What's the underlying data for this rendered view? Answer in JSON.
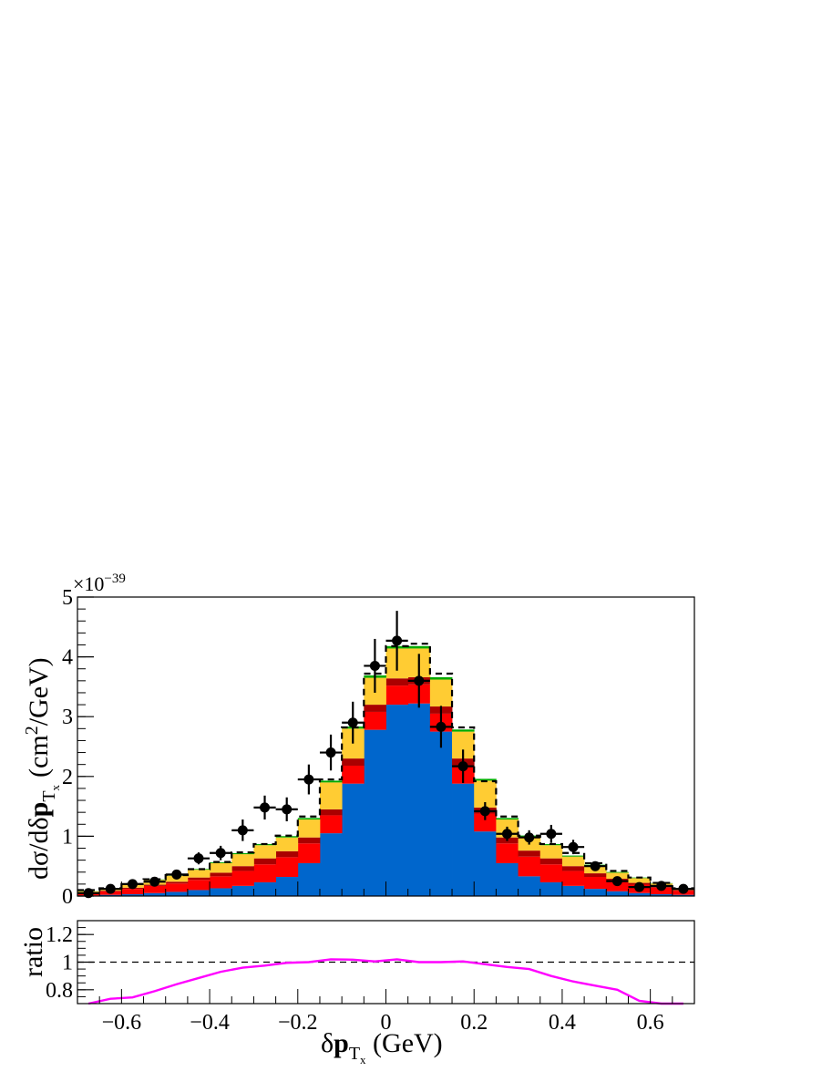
{
  "chart_data": [
    {
      "type": "bar",
      "panel": "main",
      "stacked": true,
      "bin_edges": [
        -0.7,
        -0.65,
        -0.6,
        -0.55,
        -0.5,
        -0.45,
        -0.4,
        -0.35,
        -0.3,
        -0.25,
        -0.2,
        -0.15,
        -0.1,
        -0.05,
        0,
        0.05,
        0.1,
        0.15,
        0.2,
        0.25,
        0.3,
        0.35,
        0.4,
        0.45,
        0.5,
        0.55,
        0.6,
        0.65,
        0.7
      ],
      "xlim": [
        -0.7,
        0.7
      ],
      "ylim": [
        0,
        5
      ],
      "y_multiplier": "×10",
      "y_multiplier_exp": "−39",
      "ylabel": {
        "main": "dσ/dδ",
        "bold": "p",
        "sub": "T",
        "subsub": "x",
        "units_pre": "(cm",
        "units_sup": "2",
        "units_post": "/GeV)"
      },
      "x_ticks": [
        "−0.6",
        "−0.4",
        "−0.2",
        "0",
        "0.2",
        "0.4",
        "0.6"
      ],
      "x_tick_values": [
        -0.6,
        -0.4,
        -0.2,
        0,
        0.2,
        0.4,
        0.6
      ],
      "y_ticks": [
        "0",
        "1",
        "2",
        "3",
        "4",
        "5"
      ],
      "y_tick_values": [
        0,
        1,
        2,
        3,
        4,
        5
      ],
      "colors": {
        "blue": "#0066cc",
        "red": "#ff0000",
        "darkred": "#aa0000",
        "yellow": "#ffcc33",
        "green": "#00aa00",
        "marker": "#000000"
      },
      "series": [
        {
          "color_key": "blue",
          "values": [
            0.01,
            0.02,
            0.03,
            0.05,
            0.07,
            0.1,
            0.13,
            0.17,
            0.23,
            0.32,
            0.55,
            1.05,
            1.88,
            2.78,
            3.2,
            3.22,
            2.75,
            1.88,
            1.08,
            0.55,
            0.33,
            0.23,
            0.17,
            0.12,
            0.08,
            0.05,
            0.03,
            0.02
          ]
        },
        {
          "color_key": "red",
          "values": [
            0.04,
            0.06,
            0.09,
            0.12,
            0.14,
            0.17,
            0.2,
            0.25,
            0.3,
            0.33,
            0.33,
            0.3,
            0.3,
            0.3,
            0.32,
            0.32,
            0.3,
            0.3,
            0.3,
            0.33,
            0.33,
            0.3,
            0.25,
            0.2,
            0.17,
            0.14,
            0.11,
            0.07
          ]
        },
        {
          "color_key": "darkred",
          "values": [
            0.01,
            0.01,
            0.02,
            0.02,
            0.03,
            0.04,
            0.06,
            0.08,
            0.1,
            0.1,
            0.1,
            0.1,
            0.12,
            0.12,
            0.12,
            0.12,
            0.12,
            0.12,
            0.1,
            0.1,
            0.1,
            0.1,
            0.08,
            0.06,
            0.04,
            0.03,
            0.02,
            0.01
          ]
        },
        {
          "color_key": "yellow",
          "values": [
            0.02,
            0.03,
            0.05,
            0.08,
            0.1,
            0.13,
            0.16,
            0.2,
            0.22,
            0.23,
            0.3,
            0.45,
            0.5,
            0.45,
            0.5,
            0.48,
            0.45,
            0.45,
            0.45,
            0.3,
            0.23,
            0.22,
            0.16,
            0.13,
            0.1,
            0.08,
            0.05,
            0.02
          ]
        },
        {
          "color_key": "green",
          "values": [
            0.003,
            0.004,
            0.006,
            0.008,
            0.01,
            0.012,
            0.014,
            0.017,
            0.02,
            0.022,
            0.025,
            0.03,
            0.035,
            0.04,
            0.04,
            0.04,
            0.04,
            0.035,
            0.03,
            0.025,
            0.022,
            0.02,
            0.017,
            0.014,
            0.012,
            0.01,
            0.006,
            0.003
          ]
        }
      ],
      "total_dashed": [
        0.1,
        0.13,
        0.2,
        0.28,
        0.35,
        0.45,
        0.57,
        0.73,
        0.87,
        1.01,
        1.33,
        1.95,
        2.82,
        3.72,
        4.18,
        4.22,
        3.72,
        2.82,
        1.92,
        1.33,
        1.01,
        0.87,
        0.72,
        0.55,
        0.42,
        0.31,
        0.22,
        0.13
      ],
      "data_points": {
        "x": [
          -0.675,
          -0.625,
          -0.575,
          -0.525,
          -0.475,
          -0.425,
          -0.375,
          -0.325,
          -0.275,
          -0.225,
          -0.175,
          -0.125,
          -0.075,
          -0.025,
          0.025,
          0.075,
          0.125,
          0.175,
          0.225,
          0.275,
          0.325,
          0.375,
          0.425,
          0.475,
          0.525,
          0.575,
          0.625,
          0.675
        ],
        "y": [
          0.05,
          0.12,
          0.2,
          0.24,
          0.36,
          0.63,
          0.72,
          1.1,
          1.48,
          1.45,
          1.95,
          2.4,
          2.9,
          3.85,
          4.27,
          3.6,
          2.83,
          2.17,
          1.42,
          1.04,
          0.98,
          1.04,
          0.82,
          0.5,
          0.25,
          0.15,
          0.17,
          0.12
        ],
        "yerr": [
          0.04,
          0.05,
          0.07,
          0.07,
          0.08,
          0.1,
          0.12,
          0.18,
          0.2,
          0.2,
          0.25,
          0.3,
          0.35,
          0.45,
          0.5,
          0.45,
          0.35,
          0.28,
          0.15,
          0.12,
          0.12,
          0.15,
          0.12,
          0.08,
          0.05,
          0.04,
          0.05,
          0.04
        ]
      }
    },
    {
      "type": "line",
      "panel": "ratio",
      "ylabel": "ratio",
      "xlabel": {
        "main": "δ",
        "bold": "p",
        "sub": "T",
        "subsub": "x",
        "units": " (GeV)"
      },
      "xlim": [
        -0.7,
        0.7
      ],
      "ylim": [
        0.7,
        1.3
      ],
      "y_ticks": [
        "0.8",
        "1",
        "1.2"
      ],
      "y_tick_values": [
        0.8,
        1.0,
        1.2
      ],
      "reference_line": 1.0,
      "color": "#ff00ff",
      "x": [
        -0.675,
        -0.625,
        -0.575,
        -0.525,
        -0.475,
        -0.425,
        -0.375,
        -0.325,
        -0.275,
        -0.225,
        -0.175,
        -0.125,
        -0.075,
        -0.025,
        0.025,
        0.075,
        0.125,
        0.175,
        0.225,
        0.275,
        0.325,
        0.375,
        0.425,
        0.475,
        0.525,
        0.575,
        0.625,
        0.675
      ],
      "y": [
        0.68,
        0.735,
        0.745,
        0.79,
        0.84,
        0.885,
        0.93,
        0.96,
        0.975,
        0.995,
        1.0,
        1.02,
        1.018,
        1.005,
        1.02,
        1.0,
        1.0,
        1.005,
        0.985,
        0.965,
        0.95,
        0.9,
        0.86,
        0.83,
        0.8,
        0.72,
        0.69,
        0.66
      ]
    }
  ]
}
